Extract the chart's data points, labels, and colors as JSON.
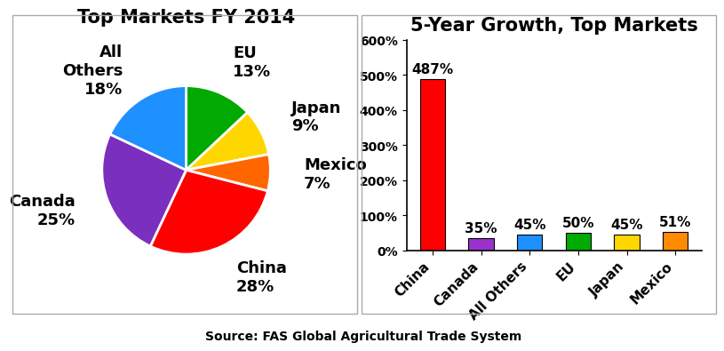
{
  "pie_title": "Top Markets FY 2014",
  "pie_values": [
    13,
    9,
    7,
    28,
    25,
    18
  ],
  "pie_colors": [
    "#00AA00",
    "#FFD700",
    "#FF6600",
    "#FF0000",
    "#7B2FBE",
    "#1E90FF"
  ],
  "pie_labels": [
    "EU\n13%",
    "Japan\n9%",
    "Mexico\n7%",
    "China\n28%",
    "Canada\n25%",
    "All\nOthers\n18%"
  ],
  "bar_title": "5-Year Growth, Top Markets",
  "bar_categories": [
    "China",
    "Canada",
    "All Others",
    "EU",
    "Japan",
    "Mexico"
  ],
  "bar_values": [
    487,
    35,
    45,
    50,
    45,
    51
  ],
  "bar_colors": [
    "#FF0000",
    "#9932CC",
    "#1E90FF",
    "#00AA00",
    "#FFD700",
    "#FF8C00"
  ],
  "bar_ylim": [
    0,
    600
  ],
  "bar_yticks": [
    0,
    100,
    200,
    300,
    400,
    500,
    600
  ],
  "bar_ytick_labels": [
    "0%",
    "100%",
    "200%",
    "300%",
    "400%",
    "500%",
    "600%"
  ],
  "source_text": "Source: FAS Global Agricultural Trade System",
  "bg_color": "#FFFFFF",
  "pie_title_fontsize": 15,
  "bar_title_fontsize": 15,
  "pie_label_fontsize": 13,
  "bar_label_fontsize": 11,
  "bar_tick_fontsize": 11,
  "ytick_fontsize": 10
}
